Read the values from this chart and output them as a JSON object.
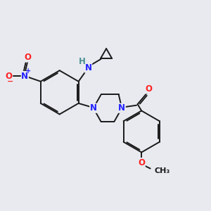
{
  "background_color": "#e8eaf0",
  "bond_color": "#1a1a1a",
  "atom_colors": {
    "N": "#2020ff",
    "O": "#ff2020",
    "H": "#4a9090",
    "C": "#1a1a1a"
  },
  "lw": 1.4,
  "figsize": [
    3.0,
    3.0
  ],
  "dpi": 100
}
